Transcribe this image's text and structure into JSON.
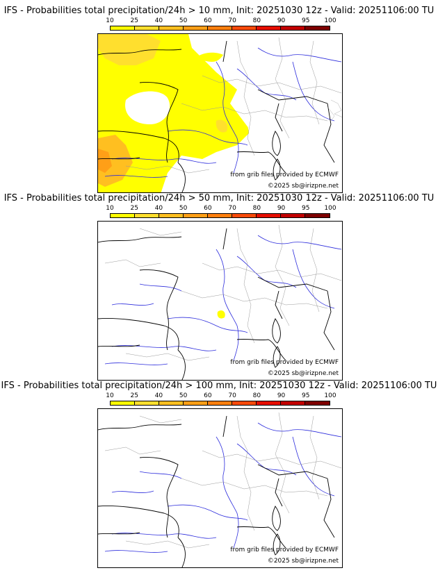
{
  "colorbar": {
    "ticks": [
      "10",
      "25",
      "40",
      "50",
      "60",
      "70",
      "80",
      "90",
      "95",
      "100"
    ],
    "colors": [
      "#ffff00",
      "#ffdf2e",
      "#ffbf20",
      "#ff9f17",
      "#ff7f0e",
      "#f84a0a",
      "#e60e00",
      "#c20000",
      "#7e0000"
    ]
  },
  "panels": [
    {
      "title": "IFS - Probabilities total precipitation/24h > 10 mm, Init: 20251030 12z - Valid: 20251106:00 TU",
      "credit_source": "from grib files provided by ECMWF",
      "credit_copyright": "©2025 sb@irizpne.net"
    },
    {
      "title": "IFS - Probabilities total precipitation/24h > 50 mm, Init: 20251030 12z - Valid: 20251106:00 TU",
      "credit_source": "from grib files provided by ECMWF",
      "credit_copyright": "©2025 sb@irizpne.net"
    },
    {
      "title": "IFS - Probabilities total precipitation/24h > 100 mm, Init: 20251030 12z - Valid: 20251106:00 TU",
      "credit_source": "from grib files provided by ECMWF",
      "credit_copyright": "©2025 sb@irizpne.net"
    }
  ],
  "colors": {
    "rivers": "#2b2bdc",
    "borders": "#999999",
    "coast": "#000000"
  }
}
